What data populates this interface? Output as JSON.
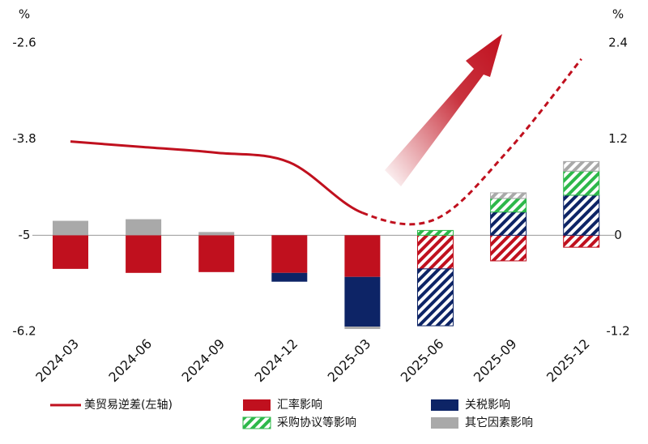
{
  "chart_data": {
    "type": "bar",
    "categories": [
      "2024-03",
      "2024-06",
      "2024-09",
      "2024-12",
      "2025-03",
      "2025-06",
      "2025-09",
      "2025-12"
    ],
    "y_unit": "%",
    "y2_unit": "%",
    "ylim": [
      -6.2,
      -2.6
    ],
    "yticks": [
      -2.6,
      -3.8,
      -5,
      -6.2
    ],
    "y2lim": [
      -1.2,
      2.4
    ],
    "y2ticks": [
      2.4,
      1.2,
      0,
      -1.2
    ],
    "zero_line": true,
    "series": [
      {
        "name": "美贸易逆差(左轴)",
        "type": "line",
        "color": "#c0101e",
        "values": [
          -3.83,
          -3.9,
          -3.97,
          -4.09,
          -4.72,
          -4.8,
          -3.94,
          -2.8
        ],
        "dashed_from": 4
      },
      {
        "name": "汇率影响",
        "axis": "y2",
        "color": "#c0101e",
        "values": [
          -0.42,
          -0.47,
          -0.46,
          -0.47,
          -0.52,
          -0.42,
          -0.32,
          -0.15
        ],
        "hatched_from": 5
      },
      {
        "name": "关税影响",
        "axis": "y2",
        "color": "#0d2466",
        "values": [
          null,
          null,
          null,
          -0.11,
          -0.62,
          -0.71,
          0.29,
          0.5
        ],
        "hatched_from": 5
      },
      {
        "name": "采购协议等影响",
        "axis": "y2",
        "color": "#2db84a",
        "values": [
          null,
          null,
          null,
          null,
          null,
          0.06,
          0.17,
          0.3
        ],
        "hatched_from": 5
      },
      {
        "name": "其它因素影响",
        "axis": "y2",
        "color": "#a9a9a9",
        "values": [
          0.18,
          0.2,
          0.04,
          null,
          -0.03,
          null,
          0.07,
          0.12
        ],
        "hatched_from": 5
      }
    ]
  }
}
